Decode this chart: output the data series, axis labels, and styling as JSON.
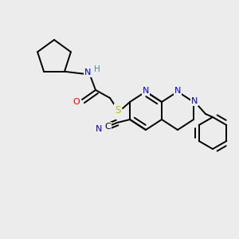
{
  "bg_color": "#ececec",
  "atom_colors": {
    "C": "#000000",
    "N": "#0000dd",
    "O": "#ff0000",
    "S": "#bbbb00",
    "H": "#5588aa"
  },
  "figsize": [
    3.0,
    3.0
  ],
  "dpi": 100
}
